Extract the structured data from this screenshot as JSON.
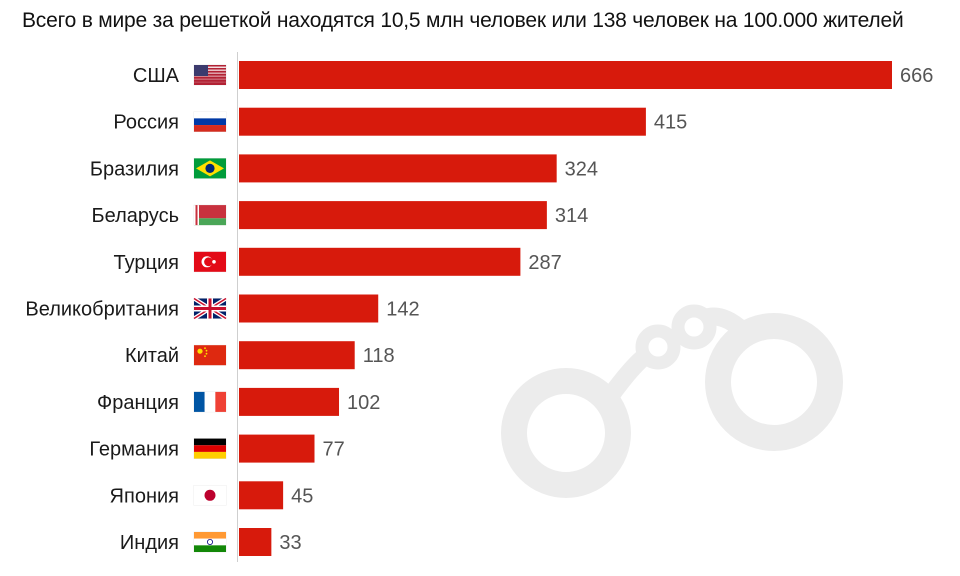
{
  "chart_data": {
    "type": "bar",
    "orientation": "horizontal",
    "title": "Всего в мире за решеткой находятся 10,5 млн человек или 138 человек на 100.000 жителей",
    "categories": [
      "США",
      "Россия",
      "Бразилия",
      "Беларусь",
      "Турция",
      "Великобритания",
      "Китай",
      "Франция",
      "Германия",
      "Япония",
      "Индия"
    ],
    "values": [
      666,
      415,
      324,
      314,
      287,
      142,
      118,
      102,
      77,
      45,
      33
    ],
    "flags": [
      "us-flag-icon",
      "russia-flag-icon",
      "brazil-flag-icon",
      "belarus-flag-icon",
      "turkey-flag-icon",
      "uk-flag-icon",
      "china-flag-icon",
      "france-flag-icon",
      "germany-flag-icon",
      "japan-flag-icon",
      "india-flag-icon"
    ],
    "xlim": [
      0,
      666
    ],
    "xlabel": "",
    "ylabel": "",
    "grid": false,
    "bar_color": "#d71a0c",
    "background_decoration": "handcuffs-watermark-icon"
  }
}
